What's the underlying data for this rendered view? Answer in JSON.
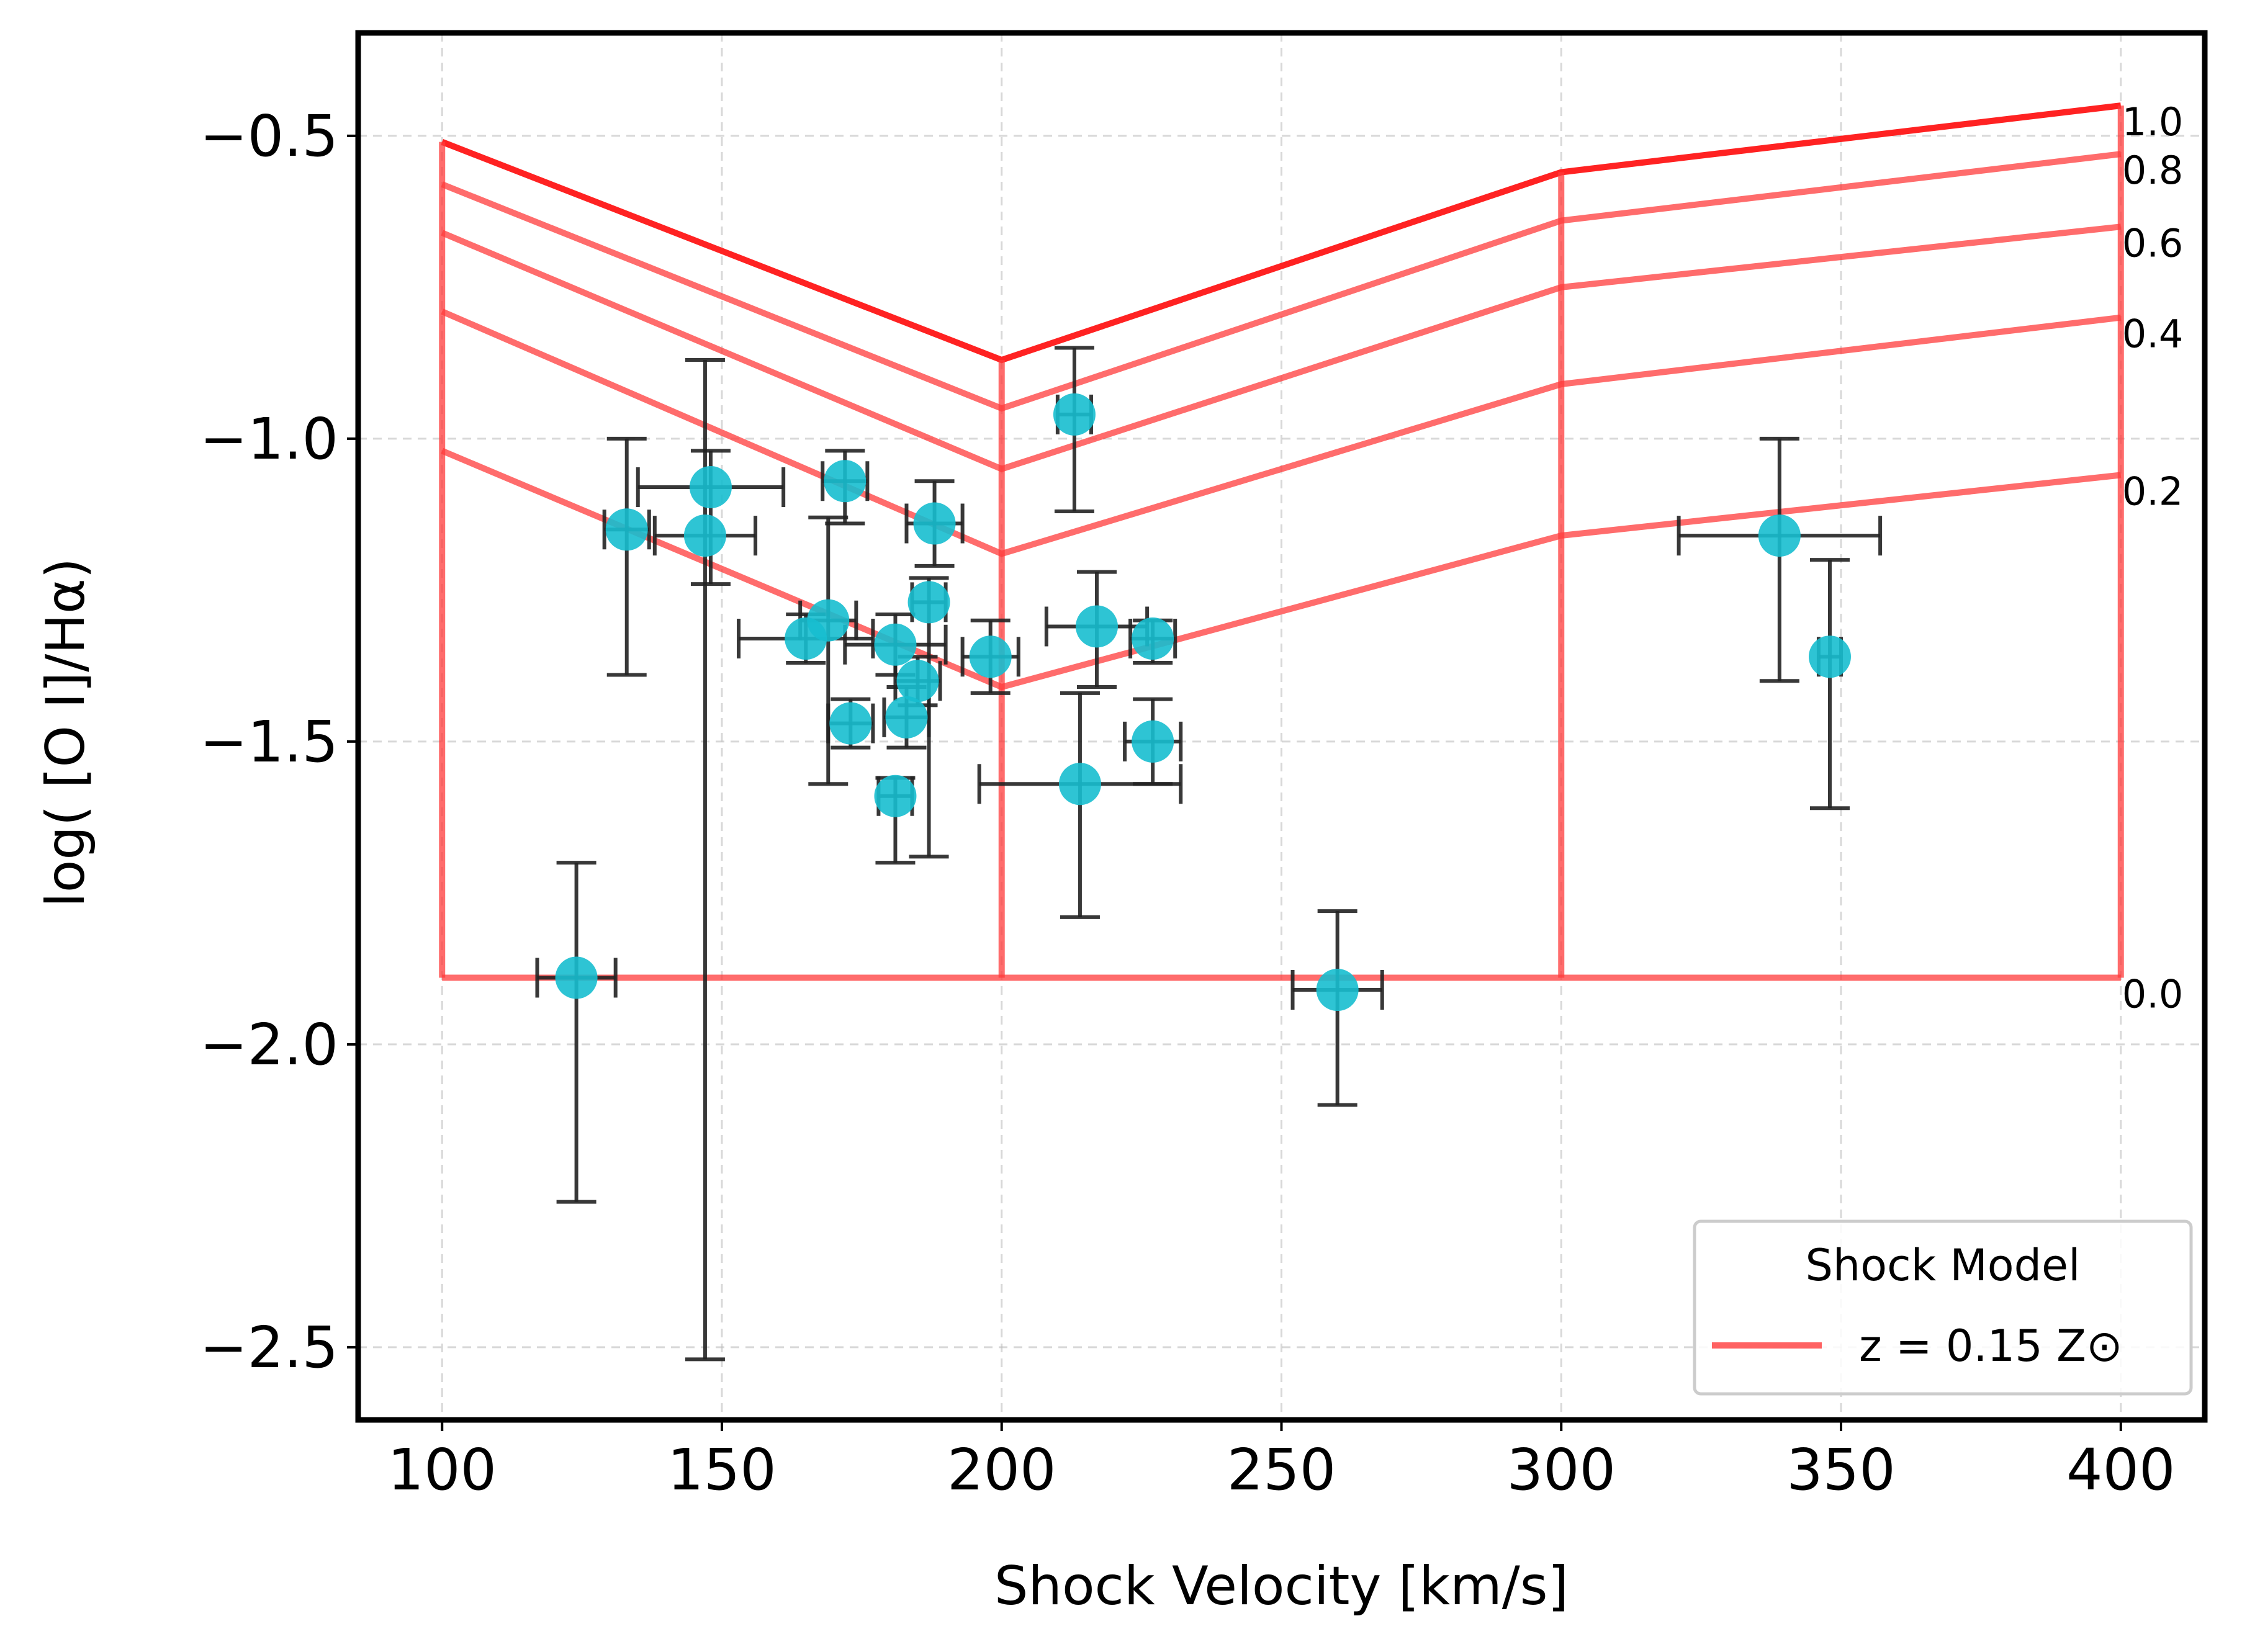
{
  "chart_data": {
    "type": "scatter",
    "xlabel": "Shock Velocity [km/s]",
    "ylabel": "log( [O I]/Hα)",
    "xlim": [
      85,
      415
    ],
    "ylim": [
      -2.62,
      -0.33
    ],
    "xticks": [
      100,
      150,
      200,
      250,
      300,
      350,
      400
    ],
    "yticks": [
      -0.5,
      -1.0,
      -1.5,
      -2.0,
      -2.5
    ],
    "xtick_labels": [
      "100",
      "150",
      "200",
      "250",
      "300",
      "350",
      "400"
    ],
    "ytick_labels": [
      "−0.5",
      "−1.0",
      "−1.5",
      "−2.0",
      "−2.5"
    ],
    "grid": true,
    "colors": {
      "points": "#17becf",
      "errorbars": "#222222",
      "model": "#ff3b3b",
      "model_top": "#ff2222"
    },
    "model_x": [
      100,
      200,
      300,
      400
    ],
    "model_curves": [
      {
        "label": "1.0",
        "values": [
          -0.51,
          -0.87,
          -0.56,
          -0.45
        ]
      },
      {
        "label": "0.8",
        "values": [
          -0.58,
          -0.95,
          -0.64,
          -0.53
        ]
      },
      {
        "label": "0.6",
        "values": [
          -0.66,
          -1.05,
          -0.75,
          -0.65
        ]
      },
      {
        "label": "0.4",
        "values": [
          -0.79,
          -1.19,
          -0.91,
          -0.8
        ]
      },
      {
        "label": "0.2",
        "values": [
          -1.02,
          -1.41,
          -1.16,
          -1.06
        ]
      },
      {
        "label": "0.0",
        "values": [
          -1.89,
          -1.89,
          -1.89,
          -1.89
        ]
      }
    ],
    "points": [
      {
        "x": 124,
        "y": -1.89,
        "xerr": 7,
        "yerr_low": 0.37,
        "yerr_high": 0.19
      },
      {
        "x": 133,
        "y": -1.15,
        "xerr": 4,
        "yerr_low": 0.24,
        "yerr_high": 0.15
      },
      {
        "x": 148,
        "y": -1.08,
        "xerr": 13,
        "yerr_low": 0.16,
        "yerr_high": 0.06
      },
      {
        "x": 147,
        "y": -1.16,
        "xerr": 9,
        "yerr_low": 1.36,
        "yerr_high": 0.29
      },
      {
        "x": 172,
        "y": -1.07,
        "xerr": 4,
        "yerr_low": 0.07,
        "yerr_high": 0.05
      },
      {
        "x": 188,
        "y": -1.14,
        "xerr": 5,
        "yerr_low": 0.07,
        "yerr_high": 0.07
      },
      {
        "x": 213,
        "y": -0.96,
        "xerr": 3,
        "yerr_low": 0.16,
        "yerr_high": 0.11
      },
      {
        "x": 187,
        "y": -1.27,
        "xerr": 3,
        "yerr_low": 0.42,
        "yerr_high": 0.04
      },
      {
        "x": 169,
        "y": -1.3,
        "xerr": 5,
        "yerr_low": 0.27,
        "yerr_high": 0.17
      },
      {
        "x": 165,
        "y": -1.33,
        "xerr": 12,
        "yerr_low": 0.04,
        "yerr_high": 0.04
      },
      {
        "x": 181,
        "y": -1.34,
        "xerr": 9,
        "yerr_low": 0.05,
        "yerr_high": 0.05
      },
      {
        "x": 185,
        "y": -1.4,
        "xerr": 4,
        "yerr_low": 0.04,
        "yerr_high": 0.04
      },
      {
        "x": 198,
        "y": -1.36,
        "xerr": 5,
        "yerr_low": 0.06,
        "yerr_high": 0.06
      },
      {
        "x": 173,
        "y": -1.47,
        "xerr": 4,
        "yerr_low": 0.04,
        "yerr_high": 0.04
      },
      {
        "x": 183,
        "y": -1.46,
        "xerr": 4,
        "yerr_low": 0.05,
        "yerr_high": 0.05
      },
      {
        "x": 181,
        "y": -1.59,
        "xerr": 3,
        "yerr_low": 0.11,
        "yerr_high": 0.03
      },
      {
        "x": 217,
        "y": -1.31,
        "xerr": 9,
        "yerr_low": 0.1,
        "yerr_high": 0.09
      },
      {
        "x": 227,
        "y": -1.33,
        "xerr": 4,
        "yerr_low": 0.04,
        "yerr_high": 0.03
      },
      {
        "x": 227,
        "y": -1.5,
        "xerr": 5,
        "yerr_low": 0.07,
        "yerr_high": 0.07
      },
      {
        "x": 214,
        "y": -1.57,
        "xerr": 18,
        "yerr_low": 0.22,
        "yerr_high": 0.15
      },
      {
        "x": 260,
        "y": -1.91,
        "xerr": 8,
        "yerr_low": 0.19,
        "yerr_high": 0.13
      },
      {
        "x": 339,
        "y": -1.16,
        "xerr": 18,
        "yerr_low": 0.24,
        "yerr_high": 0.16
      },
      {
        "x": 348,
        "y": -1.36,
        "xerr": 2,
        "yerr_low": 0.25,
        "yerr_high": 0.16
      }
    ],
    "legend": {
      "title": "Shock Model",
      "entry": "z = 0.15 Z⊙",
      "placement": "lower-right"
    }
  }
}
